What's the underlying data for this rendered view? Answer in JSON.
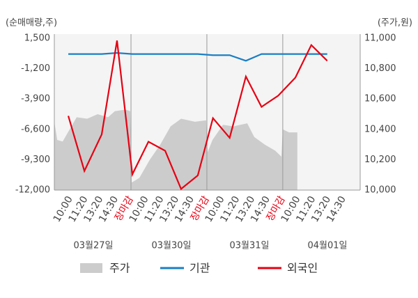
{
  "chart_data": {
    "type": "line",
    "ylabel": "(순매매량,주)",
    "y2label": "(주가,원)",
    "xlim": [
      -1.05,
      19.1
    ],
    "xticks": [
      {
        "value": 0,
        "label": "10:00"
      },
      {
        "value": 1,
        "label": "11:20"
      },
      {
        "value": 2,
        "label": "13:20"
      },
      {
        "value": 3,
        "label": "14:30"
      },
      {
        "value": 4,
        "label": "장마감",
        "color": "#e60012"
      },
      {
        "value": 5,
        "label": "10:00"
      },
      {
        "value": 6,
        "label": "11:20"
      },
      {
        "value": 7,
        "label": "13:20"
      },
      {
        "value": 8,
        "label": "14:30"
      },
      {
        "value": 9,
        "label": "장마감",
        "color": "#e60012"
      },
      {
        "value": 10,
        "label": "10:00"
      },
      {
        "value": 11,
        "label": "11:20"
      },
      {
        "value": 12,
        "label": "13:20"
      },
      {
        "value": 13,
        "label": "14:30"
      },
      {
        "value": 14,
        "label": "장마감",
        "color": "#e60012"
      },
      {
        "value": 15,
        "label": "10:00"
      },
      {
        "value": 16,
        "label": "11:20"
      },
      {
        "value": 17,
        "label": "13:20"
      },
      {
        "value": 18,
        "label": "14:30"
      }
    ],
    "vlines": [
      4,
      9,
      14
    ],
    "days": [
      "03월27일",
      "03월30일",
      "03월31일",
      "04월01일"
    ],
    "ylim": [
      -12000,
      1500
    ],
    "yticks": [
      {
        "value": 1500,
        "label": "1,500"
      },
      {
        "value": -1200,
        "label": "-1,200"
      },
      {
        "value": -3900,
        "label": "-3,900"
      },
      {
        "value": -6600,
        "label": "-6,600"
      },
      {
        "value": -9300,
        "label": "-9,300"
      },
      {
        "value": -12000,
        "label": "-12,000"
      }
    ],
    "y2lim": [
      10000,
      11000
    ],
    "y2ticks": [
      {
        "value": 11000,
        "label": "11,000"
      },
      {
        "value": 10800,
        "label": "10,800"
      },
      {
        "value": 10600,
        "label": "10,600"
      },
      {
        "value": 10400,
        "label": "10,400"
      },
      {
        "value": 10200,
        "label": "10,200"
      },
      {
        "value": 10000,
        "label": "10,000"
      }
    ],
    "series": [
      {
        "name": "주가",
        "type": "area",
        "axis": "y2",
        "color": "#cccccc",
        "x": [
          -1.05,
          -0.86,
          -0.5,
          -0.04,
          0.42,
          1.11,
          1.8,
          2.49,
          2.94,
          3.63,
          3.95,
          4.05,
          4.55,
          5.24,
          5.93,
          6.61,
          7.3,
          8.22,
          8.95,
          9.05,
          9.37,
          10.06,
          10.74,
          11.66,
          12.12,
          12.81,
          13.5,
          13.91,
          14.0,
          14.41,
          14.96
        ],
        "values": [
          10450,
          10330,
          10320,
          10400,
          10480,
          10470,
          10500,
          10480,
          10520,
          10530,
          10520,
          10050,
          10080,
          10200,
          10300,
          10420,
          10470,
          10450,
          10460,
          10250,
          10330,
          10430,
          10420,
          10440,
          10350,
          10300,
          10260,
          10220,
          10400,
          10380,
          10380
        ]
      },
      {
        "name": "기관",
        "type": "line",
        "color": "#1a7fc4",
        "x": [
          -0.13,
          0.93,
          2.07,
          3.08,
          4.09,
          5.15,
          6.25,
          7.3,
          8.4,
          9.4,
          10.5,
          11.57,
          12.6,
          13.7,
          14.83,
          15.88,
          16.93
        ],
        "values": [
          100,
          100,
          100,
          200,
          100,
          100,
          100,
          100,
          100,
          0,
          0,
          -500,
          100,
          100,
          100,
          100,
          100
        ]
      },
      {
        "name": "외국인",
        "type": "line",
        "color": "#e60012",
        "x": [
          -0.13,
          0.93,
          2.07,
          3.08,
          4.09,
          5.15,
          6.25,
          7.3,
          8.4,
          9.4,
          10.5,
          11.57,
          12.6,
          13.7,
          14.83,
          15.88,
          16.93
        ],
        "values": [
          -5400,
          -10300,
          -7050,
          1300,
          -10600,
          -7700,
          -8500,
          -11900,
          -10700,
          -5600,
          -7350,
          -1900,
          -4600,
          -3600,
          -2000,
          900,
          -500
        ]
      }
    ]
  }
}
